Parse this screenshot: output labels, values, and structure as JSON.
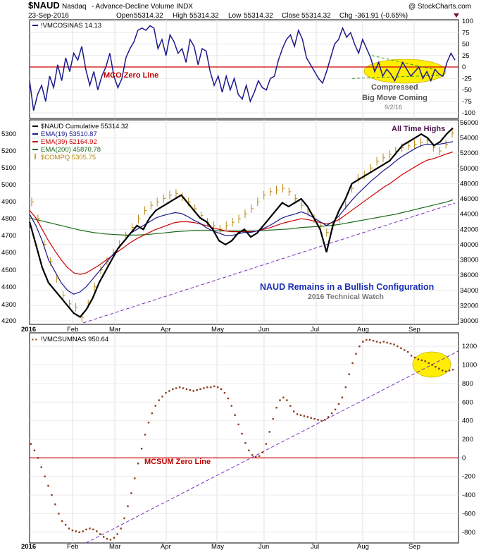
{
  "header": {
    "symbol": "$NAUD",
    "exchange": "Nasdaq",
    "description": "- Advance-Decline Volume INDX",
    "date": "23-Sep-2016",
    "open_label": "Open",
    "open": "55314.32",
    "high_label": "High",
    "high": "55314.32",
    "low_label": "Low",
    "low": "55314.32",
    "close_label": "Close",
    "close": "55314.32",
    "chg_label": "Chg",
    "chg": "-361.91 (-0.65%)",
    "brand": "@ StockCharts.com"
  },
  "colors": {
    "navy": "#1a1a8c",
    "red": "#cc0000",
    "green": "#1a6b1a",
    "goldenrod": "#b8860b",
    "purple": "#7b2fbf",
    "brown": "#8b3a1a",
    "highlight": "#ffee00"
  },
  "chart_data": [
    {
      "type": "line",
      "legend": "!VMCOSINAS 14.13",
      "ylim": [
        -100,
        100
      ],
      "y_ticks": [
        "100",
        "75",
        "50",
        "25",
        "0",
        "-25",
        "-50",
        "-75",
        "-100"
      ],
      "zero_line_label": "MCO Zero Line",
      "annotations": [
        "Compressed",
        "Big Move Coming",
        "9/2/16"
      ],
      "series": [
        {
          "values": [
            -30,
            -95,
            -60,
            -40,
            -75,
            -20,
            -45,
            5,
            -30,
            20,
            -10,
            30,
            15,
            45,
            -5,
            -40,
            -10,
            -50,
            -20,
            0,
            30,
            -20,
            -45,
            -25,
            20,
            40,
            55,
            80,
            85,
            80,
            90,
            85,
            40,
            60,
            25,
            70,
            55,
            30,
            40,
            10,
            60,
            45,
            5,
            40,
            35,
            -10,
            -40,
            -20,
            -55,
            -20,
            -50,
            -25,
            -60,
            -70,
            -40,
            -75,
            -55,
            -30,
            -45,
            -50,
            -25,
            -20,
            15,
            40,
            60,
            70,
            45,
            80,
            60,
            20,
            5,
            -10,
            -25,
            -35,
            -10,
            20,
            50,
            60,
            85,
            65,
            75,
            50,
            30,
            60,
            40,
            20,
            -10,
            10,
            -20,
            -5,
            -15,
            -30,
            -10,
            10,
            -5,
            -20,
            -10,
            0,
            -25,
            -10,
            -30,
            -5,
            -15,
            -20,
            10,
            30,
            15
          ]
        }
      ]
    },
    {
      "type": "line",
      "y_ticks_left": [
        "5300",
        "5200",
        "5100",
        "5000",
        "4900",
        "4800",
        "4700",
        "4600",
        "4500",
        "4400",
        "4300",
        "4200"
      ],
      "y_ticks_right": [
        "56000",
        "54000",
        "52000",
        "50000",
        "48000",
        "46000",
        "44000",
        "42000",
        "40000",
        "38000",
        "36000",
        "34000",
        "32000",
        "30000"
      ],
      "ylim": [
        30000,
        56000
      ],
      "legend": [
        {
          "name": "$NAUD Cumulative 55314.32"
        },
        {
          "name": "EMA(19) 53510.87"
        },
        {
          "name": "EMA(39) 52164.92"
        },
        {
          "name": "EMA(200) 45870.78"
        },
        {
          "name": "$COMPQ 5305.75"
        }
      ],
      "annotations": [
        "All Time Highs",
        "NAUD Remains in a Bullish Configuration",
        "2016 Technical Watch"
      ],
      "x_labels": [
        "2016",
        "Feb",
        "Mar",
        "Apr",
        "May",
        "Jun",
        "Jul",
        "Aug",
        "Sep"
      ],
      "series": [
        {
          "name": "$NAUD Cumulative",
          "values": [
            43000,
            40000,
            37000,
            35000,
            34000,
            33000,
            32000,
            31000,
            30500,
            31500,
            33000,
            35000,
            36500,
            38000,
            39500,
            40500,
            41500,
            42500,
            42000,
            43500,
            44500,
            45000,
            45500,
            46000,
            46500,
            45500,
            44500,
            43500,
            43000,
            42000,
            40500,
            40000,
            40500,
            41500,
            42000,
            41000,
            41500,
            42500,
            43500,
            44500,
            45500,
            45000,
            45500,
            46000,
            45000,
            43500,
            42000,
            39000,
            42500,
            44500,
            46000,
            48000,
            48500,
            49000,
            49500,
            50000,
            50500,
            51000,
            52000,
            53000,
            53500,
            54000,
            54500,
            54000,
            53000,
            53500,
            54500,
            55300
          ]
        },
        {
          "name": "EMA(19)",
          "values": [
            44000,
            42500,
            40500,
            38000,
            36500,
            35000,
            34000,
            33500,
            33800,
            34500,
            35500,
            36500,
            37500,
            38500,
            39500,
            40500,
            41500,
            42000,
            42500,
            43000,
            43500,
            43800,
            44000,
            44200,
            44100,
            43700,
            43200,
            42800,
            42200,
            41800,
            41500,
            41200,
            41200,
            41400,
            41600,
            41600,
            41800,
            42100,
            42500,
            43000,
            43500,
            43800,
            44000,
            44300,
            44000,
            43500,
            43000,
            42500,
            43000,
            43800,
            44800,
            45800,
            46700,
            47500,
            48300,
            49000,
            49700,
            50300,
            51000,
            51600,
            52100,
            52600,
            53000,
            53200,
            53100,
            53200,
            53350,
            53510
          ]
        },
        {
          "name": "EMA(39)",
          "values": [
            44500,
            43500,
            42000,
            40500,
            39200,
            38000,
            37000,
            36300,
            36100,
            36300,
            36800,
            37300,
            37900,
            38500,
            39100,
            39700,
            40300,
            40800,
            41200,
            41600,
            42000,
            42300,
            42600,
            42900,
            43000,
            43000,
            42900,
            42700,
            42500,
            42200,
            42000,
            41800,
            41700,
            41700,
            41700,
            41700,
            41800,
            42000,
            42200,
            42500,
            42800,
            43000,
            43200,
            43400,
            43300,
            43100,
            42900,
            42700,
            42900,
            43300,
            43900,
            44500,
            45100,
            45700,
            46300,
            46900,
            47500,
            48000,
            48600,
            49200,
            49700,
            50200,
            50700,
            51100,
            51300,
            51600,
            51900,
            52165
          ]
        },
        {
          "name": "EMA(200)",
          "values": [
            43500,
            43300,
            43100,
            42900,
            42700,
            42500,
            42300,
            42100,
            41900,
            41750,
            41600,
            41500,
            41400,
            41350,
            41300,
            41250,
            41250,
            41250,
            41300,
            41350,
            41450,
            41500,
            41600,
            41700,
            41750,
            41800,
            41850,
            41850,
            41850,
            41850,
            41800,
            41800,
            41800,
            41800,
            41800,
            41800,
            41800,
            41850,
            41900,
            41950,
            42000,
            42050,
            42150,
            42250,
            42300,
            42350,
            42400,
            42450,
            42550,
            42650,
            42800,
            42950,
            43100,
            43250,
            43400,
            43550,
            43700,
            43850,
            44000,
            44200,
            44400,
            44600,
            44800,
            45000,
            45200,
            45400,
            45600,
            45870
          ]
        },
        {
          "name": "$COMPQ",
          "values": [
            4900,
            4800,
            4650,
            4550,
            4450,
            4350,
            4300,
            4280,
            4220,
            4300,
            4400,
            4500,
            4550,
            4600,
            4650,
            4700,
            4750,
            4800,
            4850,
            4880,
            4900,
            4920,
            4940,
            4950,
            4930,
            4900,
            4860,
            4820,
            4780,
            4760,
            4740,
            4760,
            4780,
            4800,
            4830,
            4860,
            4900,
            4940,
            4960,
            4970,
            4980,
            4960,
            4920,
            4880,
            4840,
            4800,
            4760,
            4720,
            4760,
            4800,
            4880,
            4980,
            5040,
            5060,
            5100,
            5140,
            5160,
            5180,
            5200,
            5220,
            5230,
            5240,
            5250,
            5260,
            5220,
            5200,
            5240,
            5305
          ]
        }
      ],
      "trendline": "diagonal support"
    },
    {
      "type": "scatter",
      "legend": "!VMCSUMNAS 950.64",
      "ylim": [
        -900,
        1300
      ],
      "y_ticks": [
        "1200",
        "1000",
        "800",
        "600",
        "400",
        "200",
        "0",
        "-200",
        "-400",
        "-600",
        "-800"
      ],
      "zero_line_label": "MCSUM Zero Line",
      "x_labels": [
        "2016",
        "Feb",
        "Mar",
        "Apr",
        "May",
        "Jun",
        "Jul",
        "Aug",
        "Sep"
      ],
      "series": [
        {
          "values": [
            150,
            80,
            0,
            -100,
            -200,
            -300,
            -400,
            -500,
            -600,
            -680,
            -720,
            -760,
            -780,
            -790,
            -800,
            -790,
            -770,
            -760,
            -770,
            -790,
            -820,
            -850,
            -870,
            -880,
            -860,
            -820,
            -760,
            -650,
            -520,
            -380,
            -220,
            -60,
            100,
            250,
            380,
            480,
            560,
            620,
            660,
            700,
            720,
            740,
            750,
            760,
            750,
            740,
            730,
            720,
            730,
            740,
            750,
            760,
            760,
            770,
            760,
            740,
            700,
            640,
            560,
            460,
            360,
            260,
            160,
            80,
            30,
            10,
            20,
            60,
            150,
            280,
            420,
            540,
            620,
            650,
            620,
            560,
            500,
            470,
            460,
            450,
            440,
            430,
            420,
            410,
            400,
            410,
            440,
            480,
            520,
            580,
            650,
            760,
            900,
            1020,
            1120,
            1200,
            1250,
            1270,
            1270,
            1260,
            1250,
            1240,
            1250,
            1240,
            1230,
            1220,
            1200,
            1180,
            1160,
            1140,
            1100,
            1080,
            1060,
            1050,
            1040,
            1020,
            1000,
            980,
            960,
            940,
            930,
            940,
            950
          ]
        }
      ],
      "trendline": "diagonal support"
    }
  ]
}
